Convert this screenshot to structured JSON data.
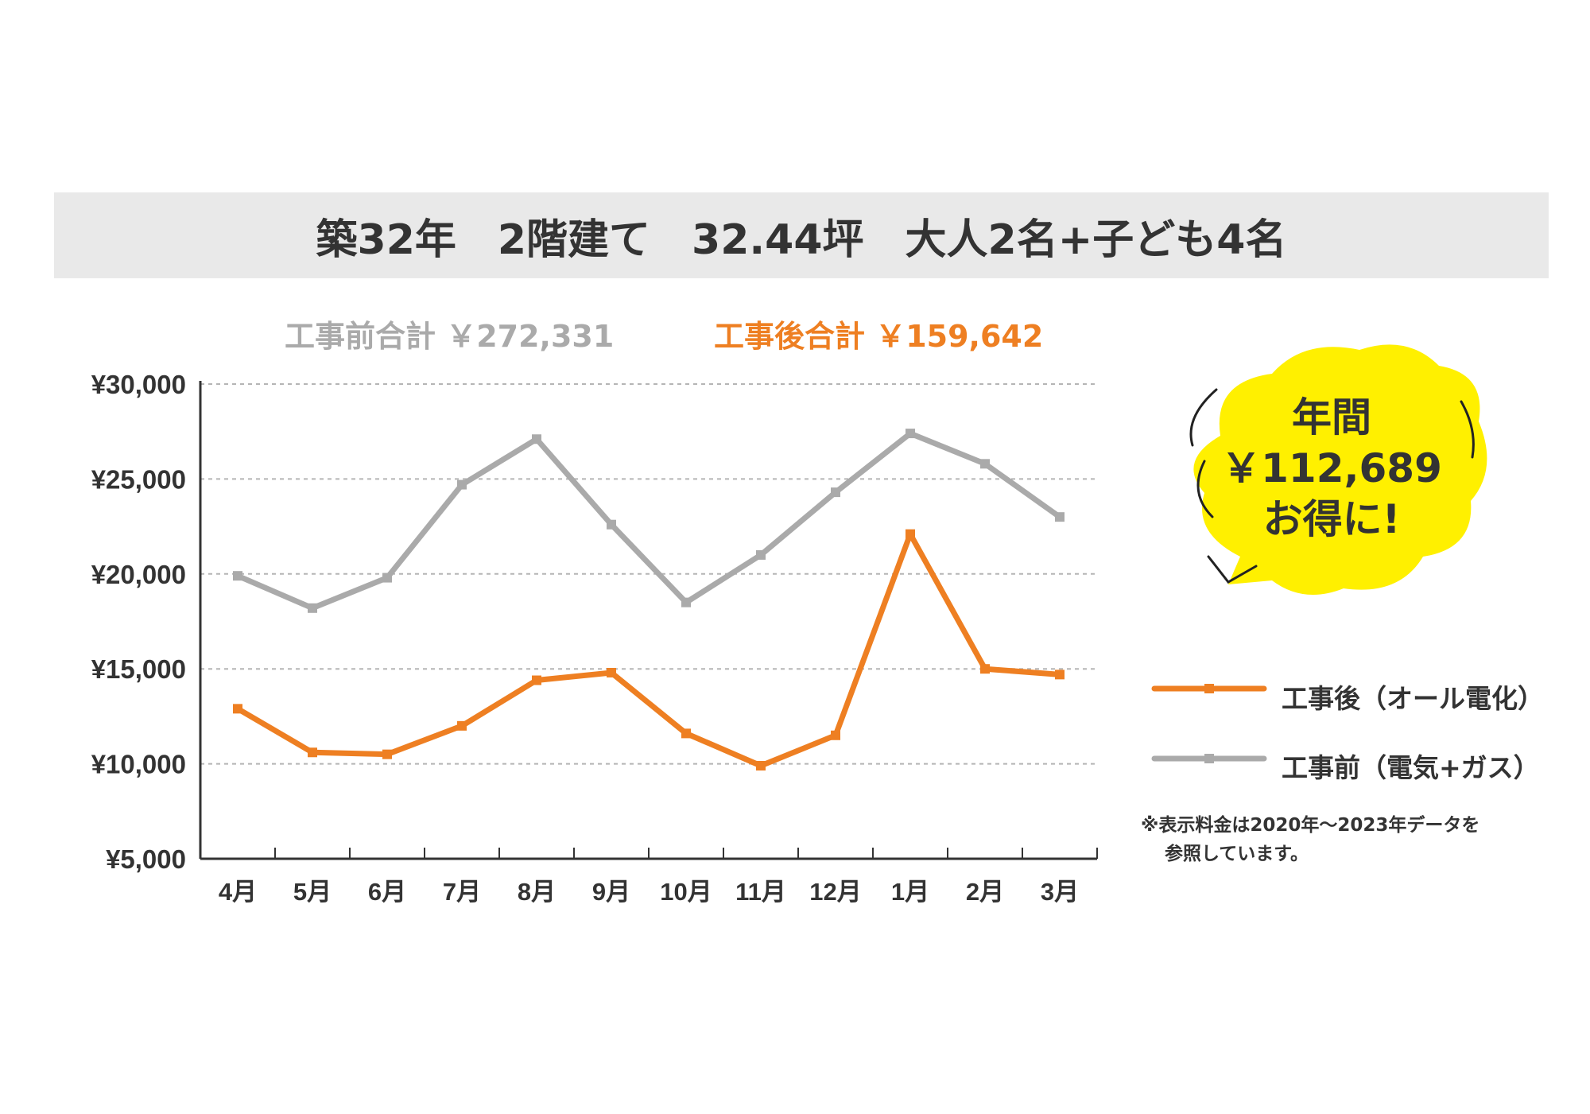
{
  "banner": {
    "text": "築32年　2階建て　32.44坪　大人2名+子ども4名"
  },
  "totals": {
    "before": "工事前合計 ￥272,331",
    "after": "工事後合計 ￥159,642"
  },
  "bubble": {
    "line1": "年間",
    "line2": "￥112,689",
    "line3": "お得に!"
  },
  "legend": {
    "after_label": "工事後（オール電化）",
    "before_label": "工事前（電気+ガス）"
  },
  "note": {
    "line1": "※表示料金は2020年〜2023年データを",
    "line2": "参照しています。"
  },
  "colors": {
    "after": "#ee7f22",
    "before": "#aaaaaa",
    "bubble": "#fff000",
    "banner": "#e9e9e9",
    "text": "#333333"
  },
  "chart_data": {
    "type": "line",
    "categories": [
      "4月",
      "5月",
      "6月",
      "7月",
      "8月",
      "9月",
      "10月",
      "11月",
      "12月",
      "1月",
      "2月",
      "3月"
    ],
    "ylim": [
      5000,
      30000
    ],
    "yticks": [
      5000,
      10000,
      15000,
      20000,
      25000,
      30000
    ],
    "ytick_labels": [
      "¥5,000",
      "¥10,000",
      "¥15,000",
      "¥20,000",
      "¥25,000",
      "¥30,000"
    ],
    "grid": "horizontal dashed",
    "series": [
      {
        "name": "工事前（電気+ガス）",
        "color": "#aaaaaa",
        "values": [
          19900,
          18200,
          19800,
          24700,
          27100,
          22600,
          18500,
          21000,
          24300,
          27400,
          25800,
          23000
        ]
      },
      {
        "name": "工事後（オール電化）",
        "color": "#ee7f22",
        "values": [
          12900,
          10600,
          10500,
          12000,
          14400,
          14800,
          11600,
          9900,
          11500,
          22100,
          15000,
          14700
        ]
      }
    ]
  }
}
